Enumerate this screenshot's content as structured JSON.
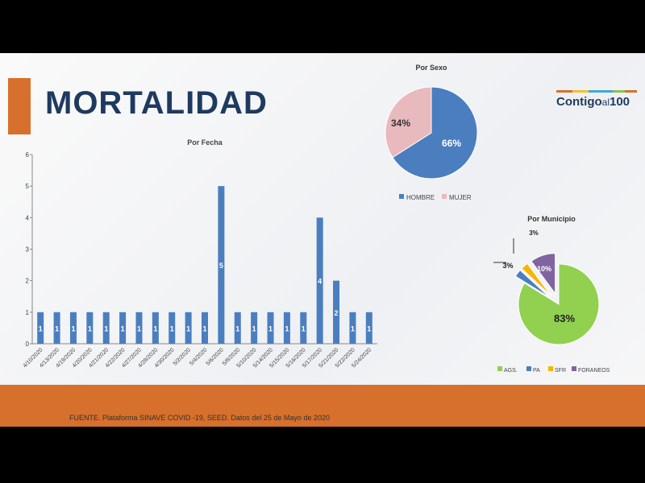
{
  "slide": {
    "title": "MORTALIDAD",
    "logo_main": "Contigo",
    "logo_al": "al",
    "logo_num": "100",
    "source": "FUENTE. Plataforma SINAVE COVID -19, SEED. Datos del 25 de Mayo de 2020"
  },
  "colors": {
    "bar": "#4a7ebf",
    "hombre": "#4a7ebf",
    "mujer": "#e8b9bd",
    "ags": "#92d050",
    "pa": "#4a7ebf",
    "sfr": "#f7b500",
    "foraneos": "#8064a2",
    "orange": "#d7702c",
    "title": "#1f3a5f"
  },
  "chart_data": [
    {
      "type": "bar",
      "title": "Por Fecha",
      "ylim": [
        0,
        6
      ],
      "yticks": [
        "0",
        "1",
        "2",
        "3",
        "4",
        "5",
        "6"
      ],
      "categories": [
        "4/10/2020",
        "4/13/2020",
        "4/19/2020",
        "4/20/2020",
        "4/21/2020",
        "4/22/2020",
        "4/27/2020",
        "4/28/2020",
        "4/30/2020",
        "5/2/2020",
        "5/4/2020",
        "5/6/2020",
        "5/8/2020",
        "5/10/2020",
        "5/14/2020",
        "5/15/2020",
        "5/16/2020",
        "5/17/2020",
        "5/21/2020",
        "5/22/2020",
        "5/24/2020"
      ],
      "values": [
        1,
        1,
        1,
        1,
        1,
        1,
        1,
        1,
        1,
        1,
        1,
        5,
        1,
        1,
        1,
        1,
        1,
        4,
        2,
        1,
        1
      ]
    },
    {
      "type": "pie",
      "title": "Por Sexo",
      "labels": [
        "HOMBRE",
        "MUJER"
      ],
      "values": [
        66,
        34
      ],
      "data_labels": [
        "66%",
        "34%"
      ],
      "legend": "bottom"
    },
    {
      "type": "pie",
      "title": "Por Municipio",
      "labels": [
        "AGS.",
        "PA",
        "SFR",
        "FORANEOS"
      ],
      "values": [
        83,
        3,
        3,
        10
      ],
      "data_labels": [
        "83%",
        "3%",
        "3%",
        "10%"
      ],
      "legend": "bottom",
      "exploded": true
    }
  ]
}
